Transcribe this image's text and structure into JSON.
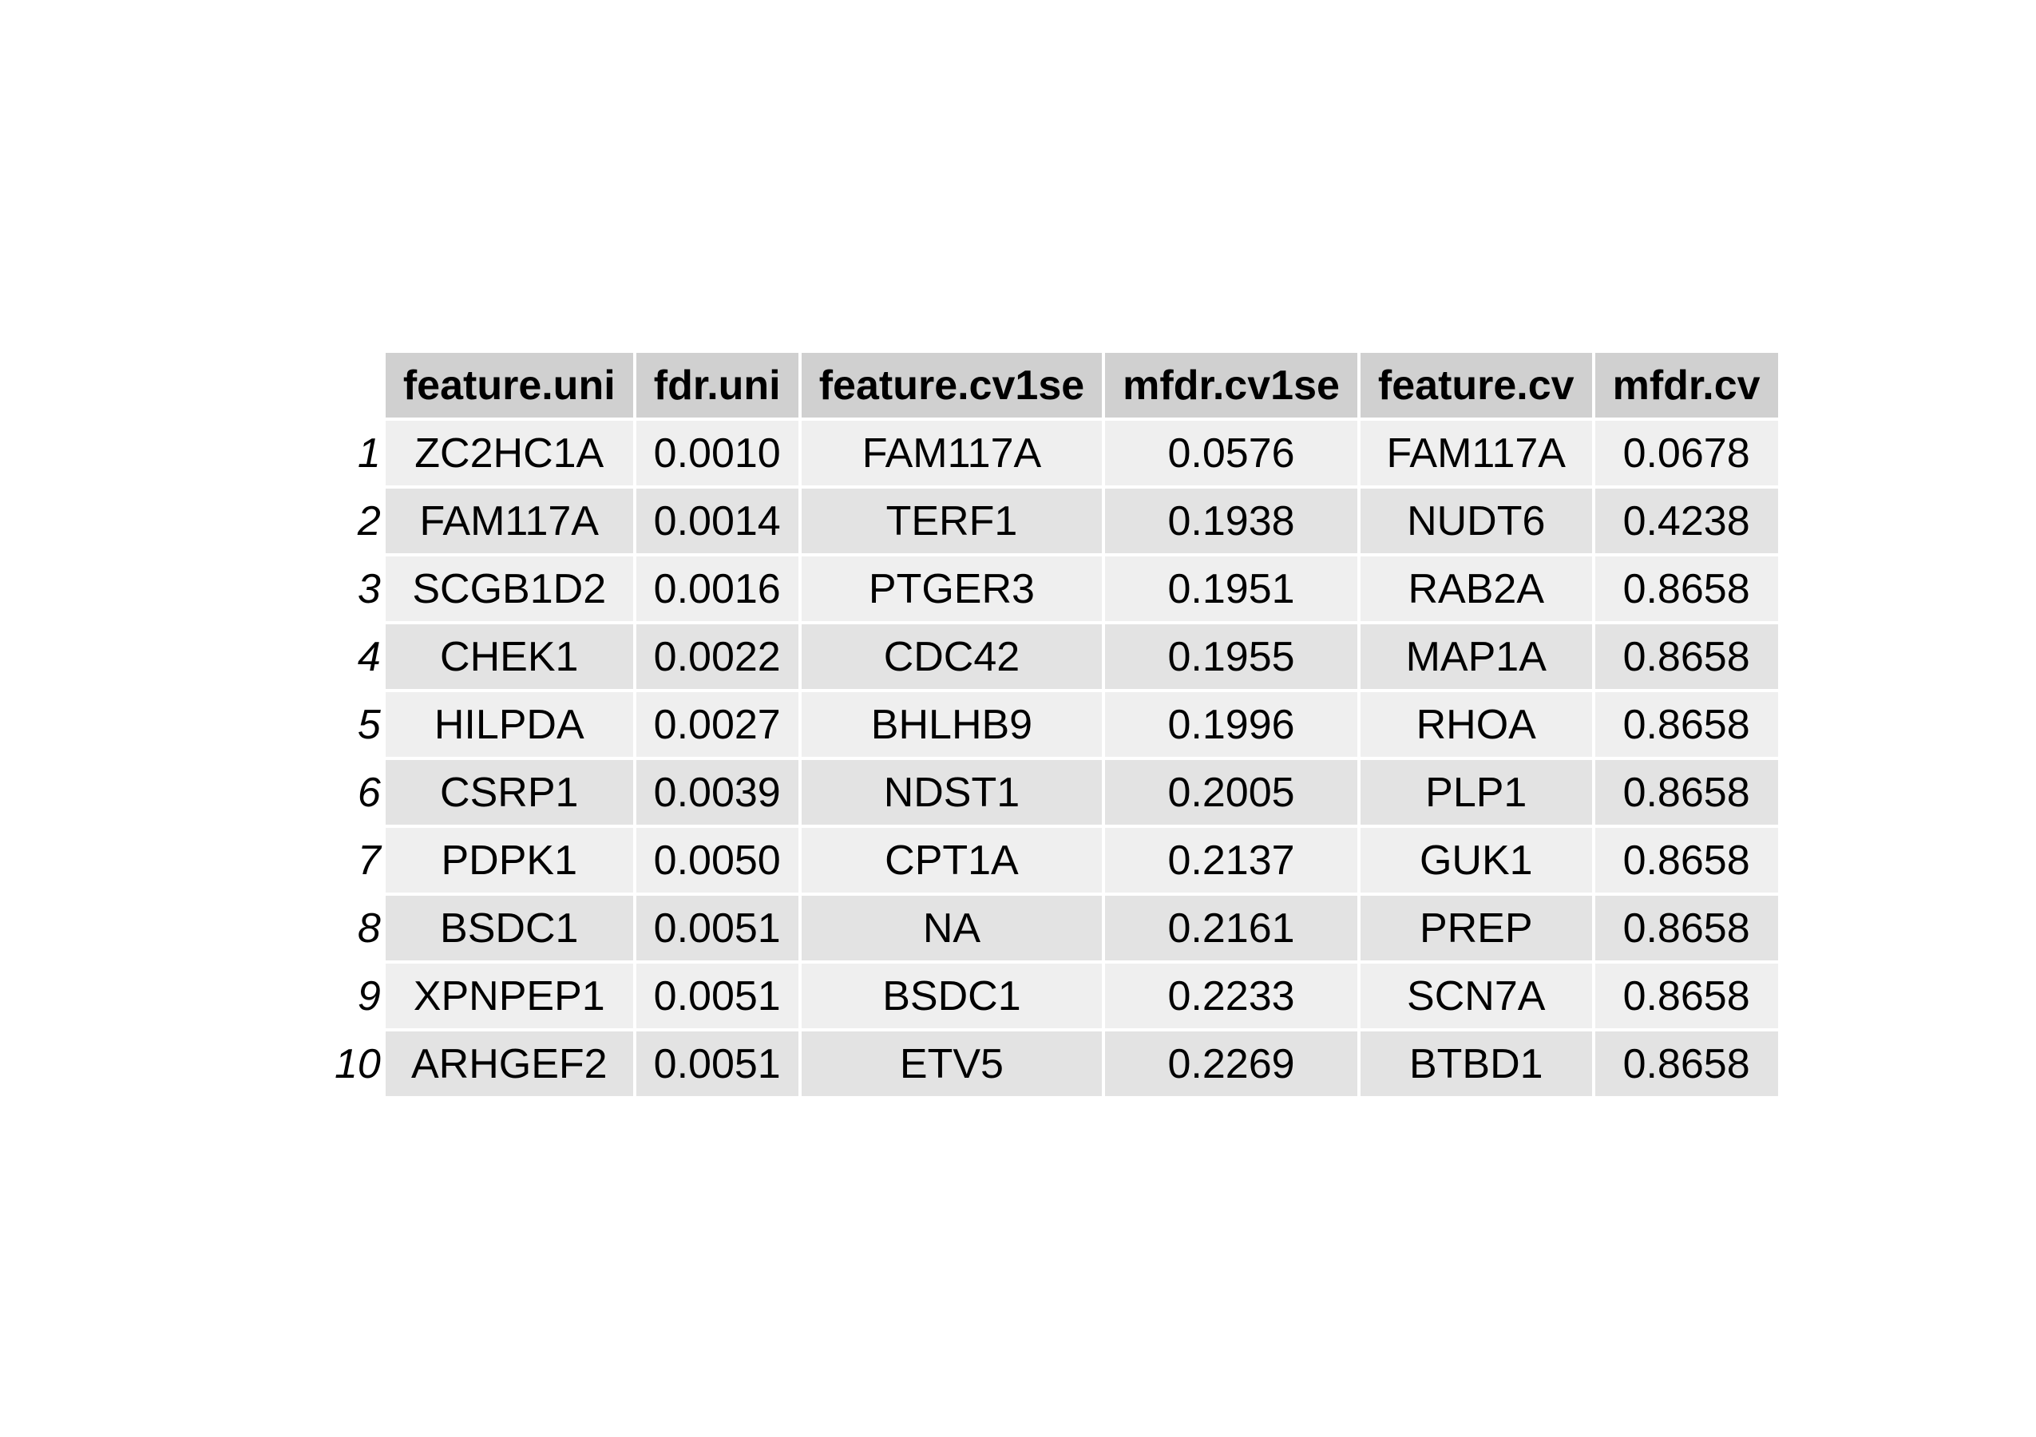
{
  "chart_data": {
    "type": "table",
    "columns": [
      "feature.uni",
      "fdr.uni",
      "feature.cv1se",
      "mfdr.cv1se",
      "feature.cv",
      "mfdr.cv"
    ],
    "row_names": [
      "1",
      "2",
      "3",
      "4",
      "5",
      "6",
      "7",
      "8",
      "9",
      "10"
    ],
    "rows": [
      [
        "ZC2HC1A",
        "0.0010",
        "FAM117A",
        "0.0576",
        "FAM117A",
        "0.0678"
      ],
      [
        "FAM117A",
        "0.0014",
        "TERF1",
        "0.1938",
        "NUDT6",
        "0.4238"
      ],
      [
        "SCGB1D2",
        "0.0016",
        "PTGER3",
        "0.1951",
        "RAB2A",
        "0.8658"
      ],
      [
        "CHEK1",
        "0.0022",
        "CDC42",
        "0.1955",
        "MAP1A",
        "0.8658"
      ],
      [
        "HILPDA",
        "0.0027",
        "BHLHB9",
        "0.1996",
        "RHOA",
        "0.8658"
      ],
      [
        "CSRP1",
        "0.0039",
        "NDST1",
        "0.2005",
        "PLP1",
        "0.8658"
      ],
      [
        "PDPK1",
        "0.0050",
        "CPT1A",
        "0.2137",
        "GUK1",
        "0.8658"
      ],
      [
        "BSDC1",
        "0.0051",
        "NA",
        "0.2161",
        "PREP",
        "0.8658"
      ],
      [
        "XPNPEP1",
        "0.0051",
        "BSDC1",
        "0.2233",
        "SCN7A",
        "0.8658"
      ],
      [
        "ARHGEF2",
        "0.0051",
        "ETV5",
        "0.2269",
        "BTBD1",
        "0.8658"
      ]
    ]
  },
  "colors": {
    "header_fill": "#d0d0d0",
    "odd_row_fill": "#efefef",
    "even_row_fill": "#e3e3e3",
    "cell_border": "#ffffff"
  }
}
